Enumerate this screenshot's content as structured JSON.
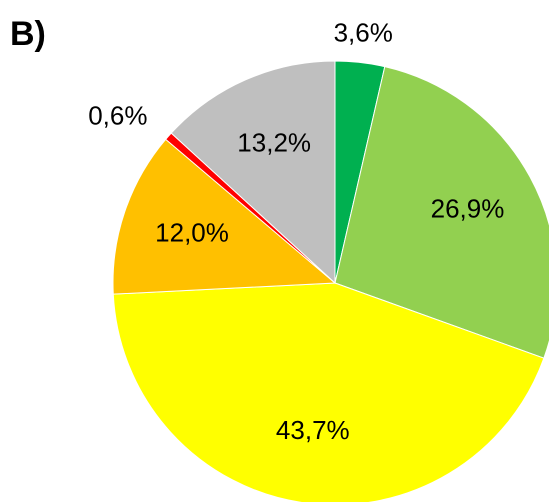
{
  "chart_data": {
    "type": "pie",
    "title": "B)",
    "values": [
      3.6,
      26.9,
      43.7,
      12.0,
      0.6,
      13.2
    ],
    "value_labels": [
      "3,6%",
      "26,9%",
      "43,7%",
      "12,0%",
      "0,6%",
      "13,2%"
    ],
    "colors": [
      "#00b050",
      "#92d050",
      "#ffff00",
      "#ffc000",
      "#ff0000",
      "#bfbfbf"
    ]
  }
}
